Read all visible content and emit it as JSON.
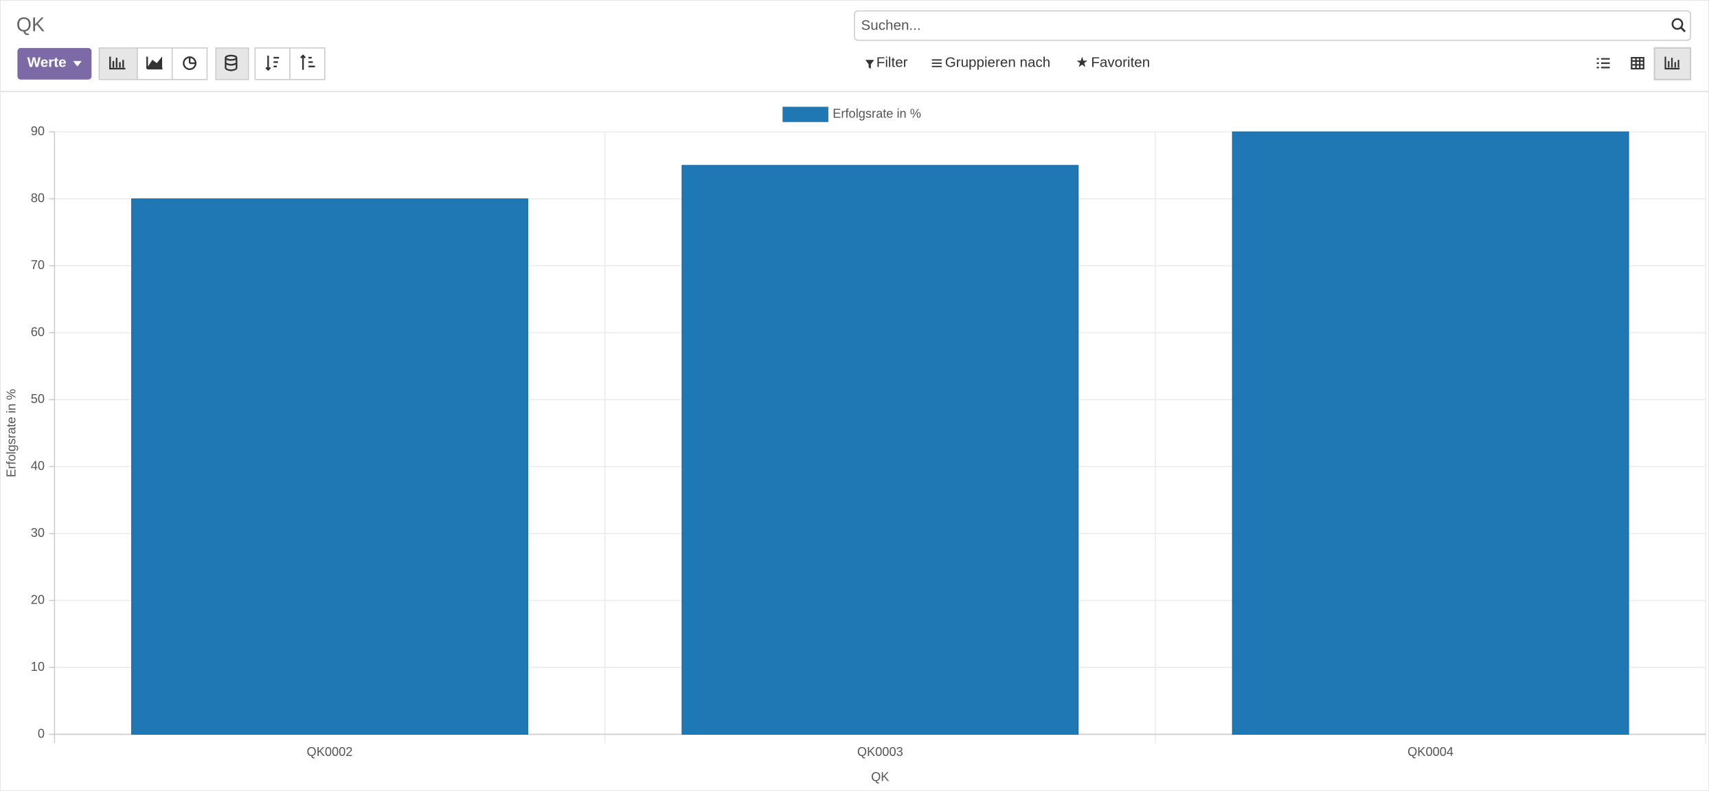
{
  "header": {
    "title": "QK",
    "search_placeholder": "Suchen...",
    "measures_button": "Werte",
    "filter_menus": [
      "Filter",
      "Gruppieren nach",
      "Favoriten"
    ]
  },
  "chart_data": {
    "type": "bar",
    "x_label": "QK",
    "y_label": "Erfolgsrate in %",
    "categories": [
      "QK0002",
      "QK0003",
      "QK0004"
    ],
    "series": [
      {
        "name": "Erfolgsrate in %",
        "color": "#1f77b4",
        "values": [
          80,
          85,
          90
        ]
      }
    ],
    "ylim": [
      0,
      90
    ],
    "yticks": [
      0,
      10,
      20,
      30,
      40,
      50,
      60,
      70,
      80,
      90
    ],
    "grid": true,
    "legend": "top"
  }
}
